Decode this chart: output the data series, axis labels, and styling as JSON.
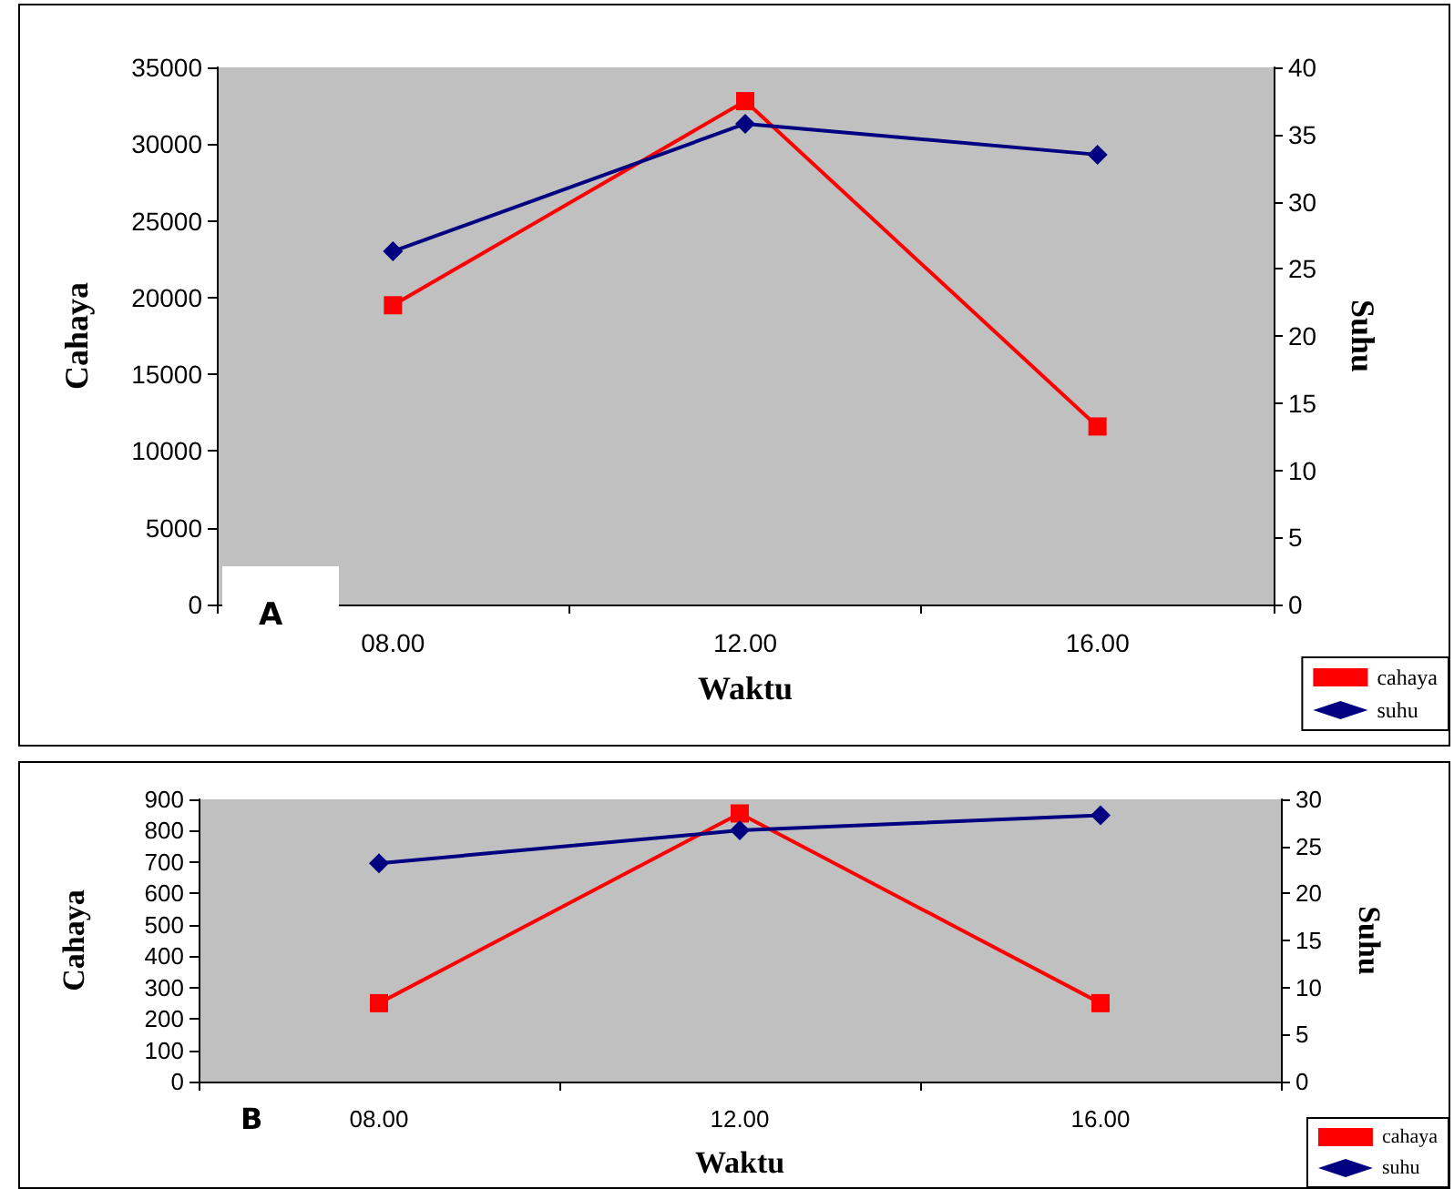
{
  "chart_data": [
    {
      "type": "line",
      "categories": [
        "08.00",
        "12.00",
        "16.00"
      ],
      "xlabel": "Waktu",
      "ylabel": "Cahaya",
      "y2label": "Suhu",
      "annotations": [
        "A"
      ],
      "series": [
        {
          "name": "cahaya",
          "color": "#ff0000",
          "marker": "square",
          "values": [
            19500,
            32800,
            11600
          ]
        },
        {
          "name": "suhu",
          "color": "#000080",
          "marker": "diamond",
          "axis": "y2",
          "values": [
            26.3,
            35.8,
            33.5
          ]
        }
      ],
      "ylim": [
        0,
        35000
      ],
      "yticks": [
        0,
        5000,
        10000,
        15000,
        20000,
        25000,
        30000,
        35000
      ],
      "y2lim": [
        0,
        40
      ],
      "y2ticks": [
        0,
        5,
        10,
        15,
        20,
        25,
        30,
        35,
        40
      ],
      "grid": false,
      "legend": "bottom right",
      "line_style": "solid"
    },
    {
      "type": "line",
      "categories": [
        "08.00",
        "12.00",
        "16.00"
      ],
      "xlabel": "Waktu",
      "ylabel": "Cahaya",
      "y2label": "Suhu",
      "annotations": [
        "B"
      ],
      "series": [
        {
          "name": "cahaya",
          "color": "#ff0000",
          "marker": "square",
          "values": [
            250,
            855,
            250
          ]
        },
        {
          "name": "suhu",
          "color": "#000080",
          "marker": "diamond",
          "axis": "y2",
          "values": [
            23.2,
            26.7,
            28.3
          ]
        }
      ],
      "ylim": [
        0,
        900
      ],
      "yticks": [
        0,
        100,
        200,
        300,
        400,
        500,
        600,
        700,
        800,
        900
      ],
      "y2lim": [
        0,
        30
      ],
      "y2ticks": [
        0,
        5,
        10,
        15,
        20,
        25,
        30
      ],
      "grid": false,
      "legend": "bottom right",
      "line_style": "solid"
    }
  ]
}
